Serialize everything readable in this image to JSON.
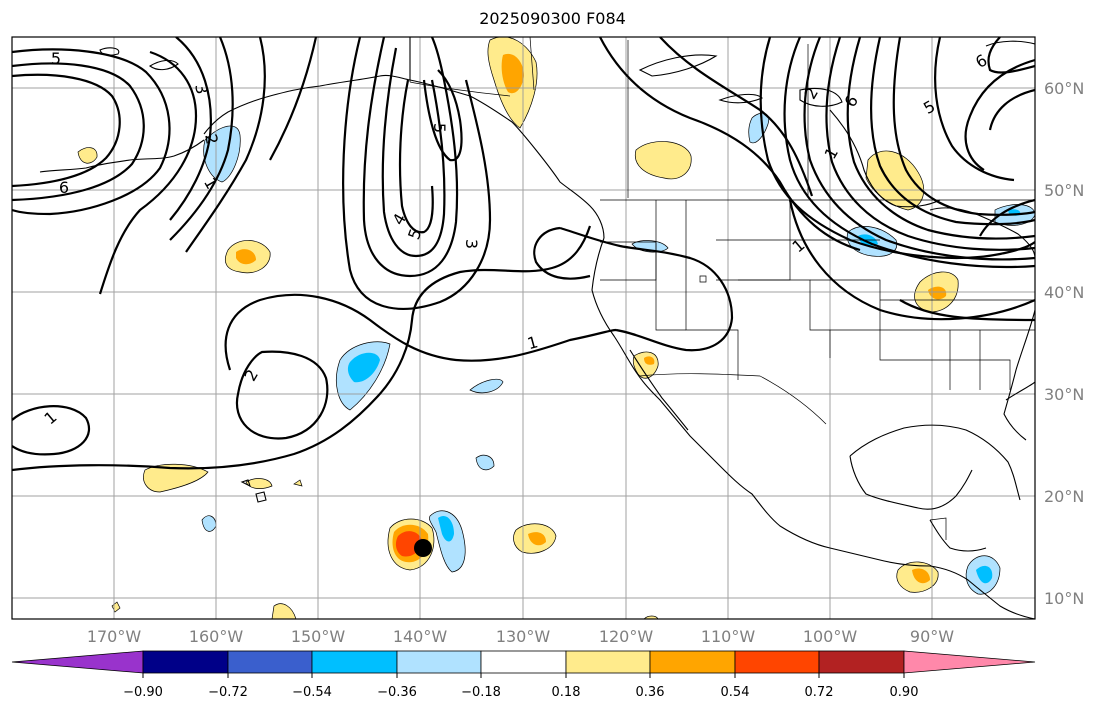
{
  "title": "2025090300 F084",
  "map": {
    "lon_range": [
      -180,
      -80
    ],
    "lat_range": [
      8,
      65
    ],
    "lon_ticks": [
      "170°W",
      "160°W",
      "150°W",
      "140°W",
      "130°W",
      "120°W",
      "110°W",
      "100°W",
      "90°W"
    ],
    "lat_ticks": [
      "60°N",
      "50°N",
      "40°N",
      "30°N",
      "20°N",
      "10°N"
    ],
    "grid": true,
    "storm_marker": {
      "lon": -139.8,
      "lat": 14.8,
      "color": "#000000"
    }
  },
  "contours": {
    "color": "#000000",
    "labels": [
      "5",
      "3",
      "2",
      "1",
      "6",
      "5",
      "4",
      "5",
      "3",
      "1",
      "2",
      "1",
      "1",
      "2",
      "6",
      "5",
      "6",
      "1"
    ]
  },
  "colorbar": {
    "ticks": [
      "−0.90",
      "−0.72",
      "−0.54",
      "−0.36",
      "−0.18",
      "0.18",
      "0.36",
      "0.54",
      "0.72",
      "0.90"
    ],
    "colors": [
      "#9933cc",
      "#000088",
      "#3a5fcd",
      "#00bfff",
      "#b0e2ff",
      "#ffffff",
      "#ffeb8c",
      "#ffa500",
      "#ff4500",
      "#b22222",
      "#ff88aa"
    ]
  }
}
